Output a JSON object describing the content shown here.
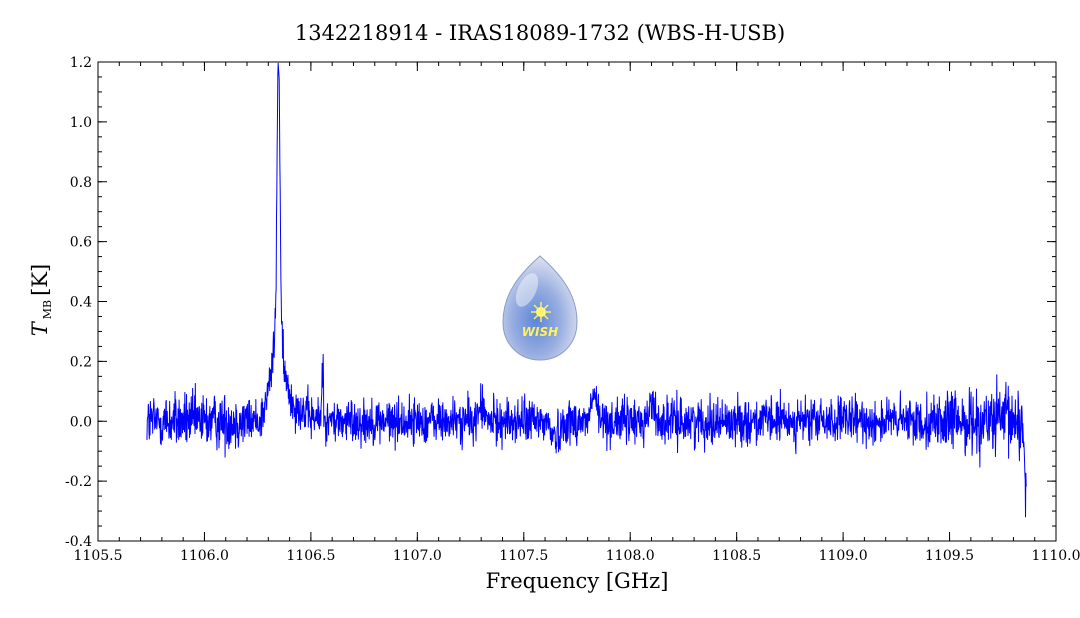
{
  "chart_data": {
    "type": "line",
    "title": "1342218914 - IRAS18089-1732 (WBS-H-USB)",
    "xlabel": "Frequency [GHz]",
    "ylabel_main": "T",
    "ylabel_sub": "MB",
    "ylabel_unit": "[K]",
    "xlim": [
      1105.5,
      1110.0
    ],
    "ylim": [
      -0.4,
      1.2
    ],
    "x_ticks": [
      "1105.5",
      "1106.0",
      "1106.5",
      "1107.0",
      "1107.5",
      "1108.0",
      "1108.5",
      "1109.0",
      "1109.5",
      "1110.0"
    ],
    "y_ticks": [
      "-0.4",
      "-0.2",
      "0.0",
      "0.2",
      "0.4",
      "0.6",
      "0.8",
      "1.0",
      "1.2"
    ],
    "grid": false,
    "line_color": "#0000ff",
    "spectrum": {
      "x_start": 1105.73,
      "x_end": 1109.86,
      "baseline_noise_rms_K": 0.05,
      "features": [
        {
          "x": 1106.35,
          "peak": 1.02
        },
        {
          "x": 1106.555,
          "peak": 0.27
        },
        {
          "x": 1107.3,
          "peak": 0.13
        },
        {
          "x": 1107.83,
          "peak": 0.2
        },
        {
          "x": 1108.1,
          "peak": 0.15
        },
        {
          "x": 1109.86,
          "peak": -0.25
        }
      ]
    },
    "watermark": {
      "text": "WISH",
      "icon": "water-drop-logo-icon"
    }
  }
}
